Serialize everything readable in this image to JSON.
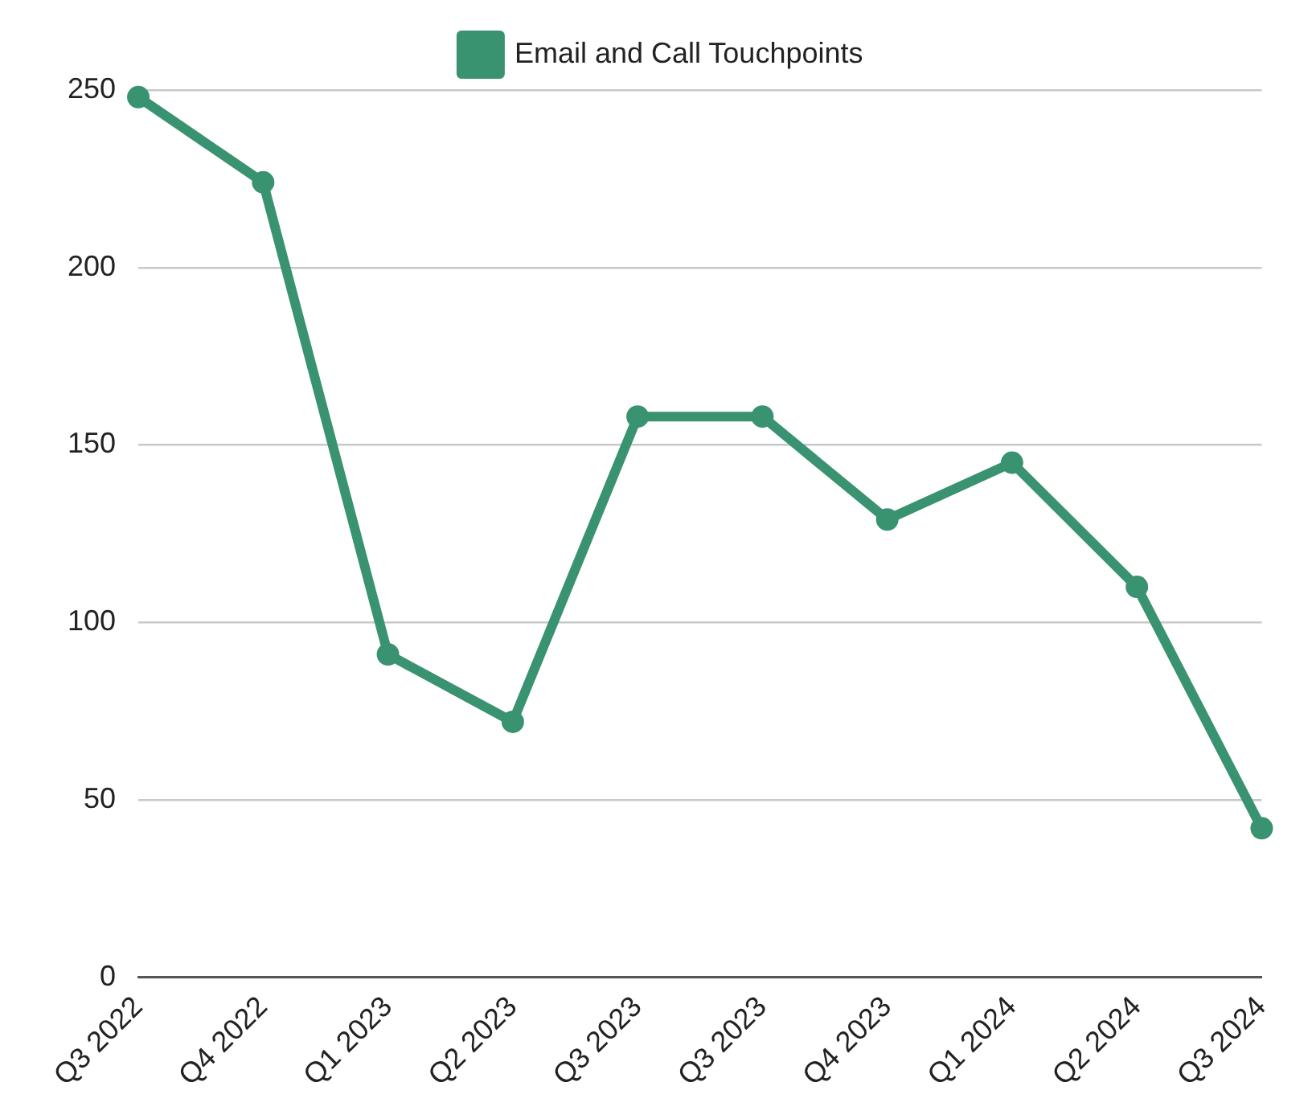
{
  "chart_data": {
    "type": "line",
    "categories": [
      "Q3 2022",
      "Q4 2022",
      "Q1 2023",
      "Q2 2023",
      "Q3 2023",
      "Q3 2023",
      "Q4 2023",
      "Q1 2024",
      "Q2 2024",
      "Q3 2024"
    ],
    "series": [
      {
        "name": "Email and Call Touchpoints",
        "color": "#3a9370",
        "values": [
          248,
          224,
          91,
          72,
          158,
          158,
          129,
          145,
          110,
          42
        ]
      }
    ],
    "ylim": [
      0,
      250
    ],
    "yticks": [
      0,
      50,
      100,
      150,
      200,
      250
    ],
    "grid": "y",
    "legend": "top",
    "marker": "circle",
    "line_style": "solid"
  }
}
